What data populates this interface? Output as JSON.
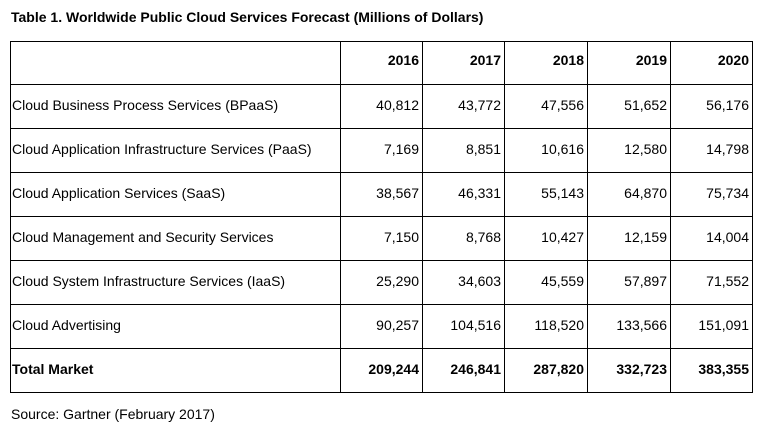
{
  "title": "Table 1. Worldwide Public Cloud Services Forecast (Millions of Dollars)",
  "source": "Source: Gartner (February 2017)",
  "chart_data": {
    "type": "table",
    "title": "Table 1. Worldwide Public Cloud Services Forecast (Millions of Dollars)",
    "columns": [
      "2016",
      "2017",
      "2018",
      "2019",
      "2020"
    ],
    "rows": [
      {
        "label": "Cloud Business Process Services (BPaaS)",
        "values": [
          "40,812",
          "43,772",
          "47,556",
          "51,652",
          "56,176"
        ]
      },
      {
        "label": "Cloud Application Infrastructure Services (PaaS)",
        "values": [
          "7,169",
          "8,851",
          "10,616",
          "12,580",
          "14,798"
        ]
      },
      {
        "label": "Cloud Application Services (SaaS)",
        "values": [
          "38,567",
          "46,331",
          "55,143",
          "64,870",
          "75,734"
        ]
      },
      {
        "label": "Cloud Management and Security Services",
        "values": [
          "7,150",
          "8,768",
          "10,427",
          "12,159",
          "14,004"
        ]
      },
      {
        "label": "Cloud System Infrastructure Services (IaaS)",
        "values": [
          "25,290",
          "34,603",
          "45,559",
          "57,897",
          "71,552"
        ]
      },
      {
        "label": "Cloud Advertising",
        "values": [
          "90,257",
          "104,516",
          "118,520",
          "133,566",
          "151,091"
        ]
      }
    ],
    "total": {
      "label": "Total Market",
      "values": [
        "209,244",
        "246,841",
        "287,820",
        "332,723",
        "383,355"
      ]
    }
  }
}
